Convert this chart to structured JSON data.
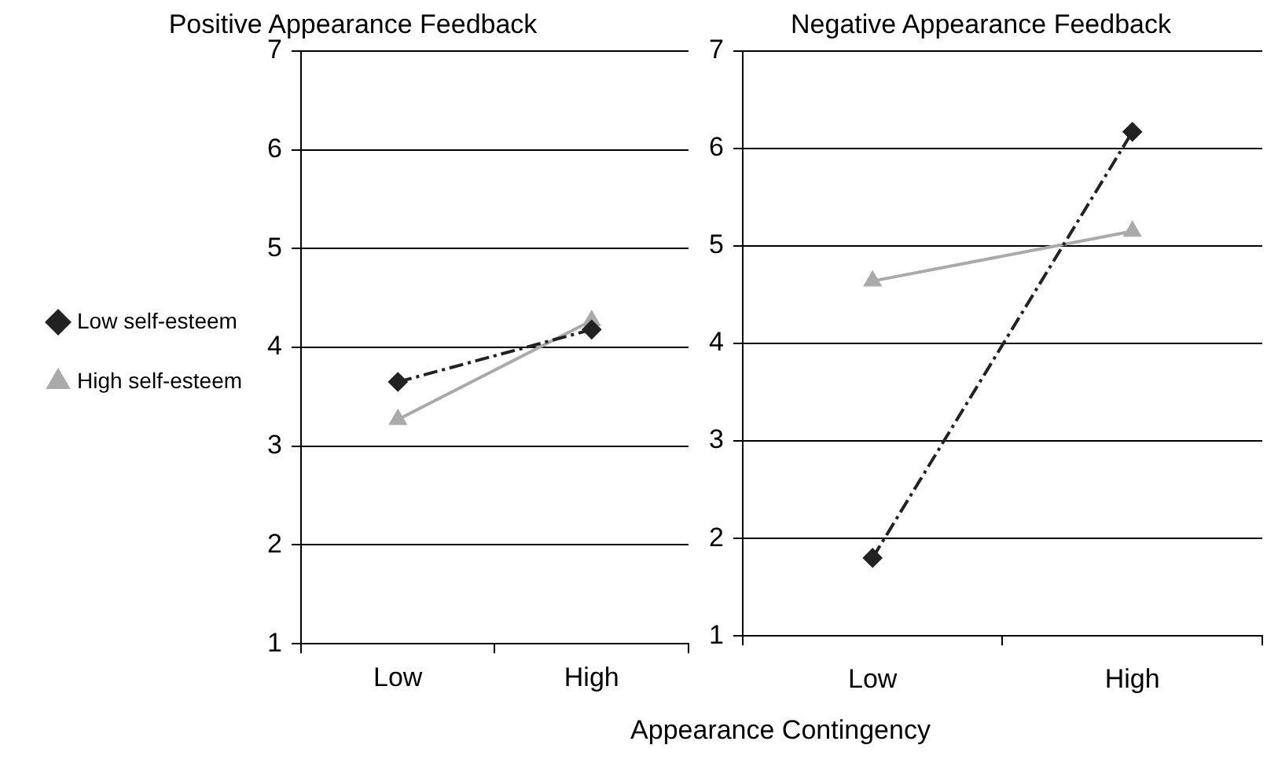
{
  "chart_data": [
    {
      "type": "line",
      "title": "Positive Appearance Feedback",
      "xlabel": "Appearance Contingency",
      "categories": [
        "Low",
        "High"
      ],
      "ylim": [
        1,
        7
      ],
      "yticks": [
        1,
        2,
        3,
        4,
        5,
        6,
        7
      ],
      "grid": "y",
      "legend": "left",
      "series": [
        {
          "name": "Low self-esteem",
          "color": "#222222",
          "values": [
            3.65,
            4.18
          ],
          "marker": "diamond",
          "line_style": "dashed"
        },
        {
          "name": "High self-esteem",
          "color": "#aaaaaa",
          "values": [
            3.27,
            4.27
          ],
          "marker": "triangle",
          "line_style": "solid"
        }
      ]
    },
    {
      "type": "line",
      "title": "Negative Appearance Feedback",
      "categories": [
        "Low",
        "High"
      ],
      "ylim": [
        1,
        7
      ],
      "yticks": [
        1,
        2,
        3,
        4,
        5,
        6,
        7
      ],
      "grid": "y",
      "series": [
        {
          "color": "#222222",
          "values": [
            1.8,
            6.17
          ],
          "marker": "diamond",
          "line_style": "dashed"
        },
        {
          "color": "#aaaaaa",
          "values": [
            4.64,
            5.15
          ],
          "marker": "triangle",
          "line_style": "solid"
        }
      ]
    }
  ]
}
